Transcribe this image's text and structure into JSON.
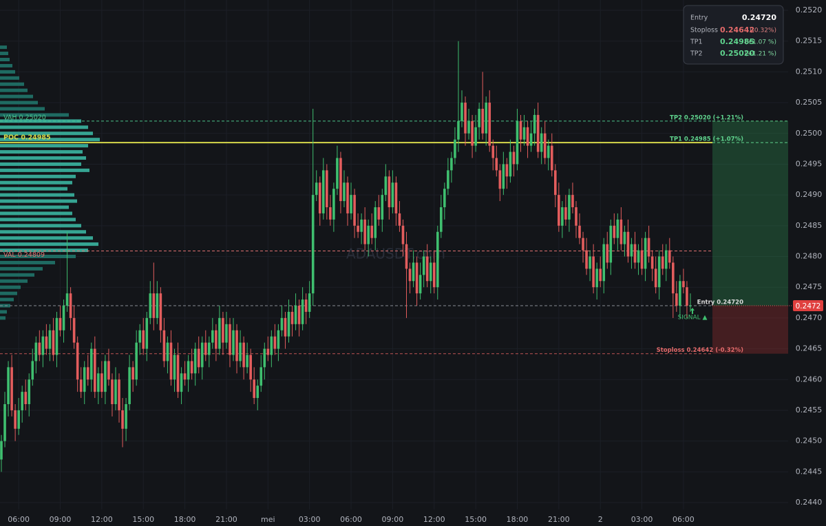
{
  "chart_data": {
    "type": "candlestick",
    "watermark": "ADAUSDT.com",
    "up_color": "#3fbf6f",
    "down_color": "#e35d5d",
    "grid": true,
    "ylim": [
      0.244,
      0.252
    ],
    "yticks": [
      {
        "value": 0.252,
        "label": "0.2520"
      },
      {
        "value": 0.2515,
        "label": "0.2515"
      },
      {
        "value": 0.251,
        "label": "0.2510"
      },
      {
        "value": 0.2505,
        "label": "0.2505"
      },
      {
        "value": 0.25,
        "label": "0.2500"
      },
      {
        "value": 0.2495,
        "label": "0.2495"
      },
      {
        "value": 0.249,
        "label": "0.2490"
      },
      {
        "value": 0.2485,
        "label": "0.2485"
      },
      {
        "value": 0.248,
        "label": "0.2480"
      },
      {
        "value": 0.2475,
        "label": "0.2475"
      },
      {
        "value": 0.247,
        "label": "0.2470"
      },
      {
        "value": 0.2465,
        "label": "0.2465"
      },
      {
        "value": 0.246,
        "label": "0.2460"
      },
      {
        "value": 0.2455,
        "label": "0.2455"
      },
      {
        "value": 0.245,
        "label": "0.2450"
      },
      {
        "value": 0.2445,
        "label": "0.2445"
      },
      {
        "value": 0.244,
        "label": "0.2440"
      }
    ],
    "categories": [
      null,
      null,
      null,
      null,
      null,
      "06:00",
      null,
      null,
      null,
      null,
      null,
      null,
      null,
      null,
      null,
      null,
      null,
      "09:00",
      null,
      null,
      null,
      null,
      null,
      null,
      null,
      null,
      null,
      null,
      null,
      "12:00",
      null,
      null,
      null,
      null,
      null,
      null,
      null,
      null,
      null,
      null,
      null,
      "15:00",
      null,
      null,
      null,
      null,
      null,
      null,
      null,
      null,
      null,
      null,
      null,
      "18:00",
      null,
      null,
      null,
      null,
      null,
      null,
      null,
      null,
      null,
      null,
      null,
      "21:00",
      null,
      null,
      null,
      null,
      null,
      null,
      null,
      null,
      null,
      null,
      null,
      "mei",
      null,
      null,
      null,
      null,
      null,
      null,
      null,
      null,
      null,
      null,
      null,
      "03:00",
      null,
      null,
      null,
      null,
      null,
      null,
      null,
      null,
      null,
      null,
      null,
      "06:00",
      null,
      null,
      null,
      null,
      null,
      null,
      null,
      null,
      null,
      null,
      null,
      "09:00",
      null,
      null,
      null,
      null,
      null,
      null,
      null,
      null,
      null,
      null,
      null,
      "12:00",
      null,
      null,
      null,
      null,
      null,
      null,
      null,
      null,
      null,
      null,
      null,
      "15:00",
      null,
      null,
      null,
      null,
      null,
      null,
      null,
      null,
      null,
      null,
      null,
      "18:00",
      null,
      null,
      null,
      null,
      null,
      null,
      null,
      null,
      null,
      null,
      null,
      "21:00",
      null,
      null,
      null,
      null,
      null,
      null,
      null,
      null,
      null,
      null,
      null,
      "2",
      null,
      null,
      null,
      null,
      null,
      null,
      null,
      null,
      null,
      null,
      null,
      "03:00",
      null,
      null,
      null,
      null,
      null,
      null,
      null,
      null,
      null,
      null,
      null,
      "06:00",
      null,
      null
    ],
    "open": [
      0.2447,
      0.245,
      0.2456,
      0.2462,
      0.2455,
      0.2452,
      0.2455,
      0.2458,
      0.2456,
      0.246,
      0.2463,
      0.2466,
      0.2464,
      0.2467,
      0.2465,
      0.2468,
      0.2464,
      0.247,
      0.2468,
      0.2472,
      0.2474,
      0.247,
      0.2466,
      0.246,
      0.2458,
      0.2462,
      0.246,
      0.2465,
      0.2458,
      0.2461,
      0.2458,
      0.2463,
      0.246,
      0.2456,
      0.246,
      0.2455,
      0.2452,
      0.2456,
      0.2462,
      0.246,
      0.2466,
      0.2468,
      0.2465,
      0.247,
      0.2474,
      0.247,
      0.2474,
      0.2468,
      0.2463,
      0.2466,
      0.246,
      0.2464,
      0.2458,
      0.2461,
      0.246,
      0.2463,
      0.2461,
      0.2465,
      0.2462,
      0.2466,
      0.2464,
      0.2466,
      0.2468,
      0.2465,
      0.247,
      0.2466,
      0.2469,
      0.2464,
      0.2468,
      0.2463,
      0.2466,
      0.2462,
      0.2464,
      0.246,
      0.2457,
      0.2459,
      0.2462,
      0.2465,
      0.2464,
      0.2467,
      0.2465,
      0.2468,
      0.247,
      0.2467,
      0.2471,
      0.2469,
      0.2472,
      0.2469,
      0.2473,
      0.2471,
      0.2474,
      0.249,
      0.2492,
      0.2487,
      0.2494,
      0.2488,
      0.2486,
      0.2491,
      0.2496,
      0.2489,
      0.2492,
      0.2487,
      0.249,
      0.2485,
      0.2484,
      0.2486,
      0.2482,
      0.2485,
      0.2483,
      0.2488,
      0.2486,
      0.249,
      0.2493,
      0.2488,
      0.2492,
      0.2487,
      0.2485,
      0.2482,
      0.2478,
      0.2476,
      0.2479,
      0.2474,
      0.2477,
      0.248,
      0.2476,
      0.2479,
      0.2475,
      0.2484,
      0.2488,
      0.2491,
      0.2494,
      0.2496,
      0.2499,
      0.2502,
      0.2505,
      0.25,
      0.2502,
      0.2498,
      0.2501,
      0.2504,
      0.25,
      0.2505,
      0.2498,
      0.2496,
      0.2494,
      0.2491,
      0.2495,
      0.2493,
      0.2497,
      0.2495,
      0.2502,
      0.2499,
      0.2501,
      0.2498,
      0.25,
      0.2503,
      0.2497,
      0.25,
      0.2496,
      0.2498,
      0.2494,
      0.249,
      0.2485,
      0.2488,
      0.2486,
      0.249,
      0.2488,
      0.2485,
      0.2483,
      0.2481,
      0.2478,
      0.248,
      0.2475,
      0.2478,
      0.2476,
      0.2482,
      0.2479,
      0.2485,
      0.2483,
      0.2486,
      0.2482,
      0.2484,
      0.248,
      0.2482,
      0.2479,
      0.2481,
      0.2478,
      0.2483,
      0.248,
      0.2478,
      0.2475,
      0.248,
      0.2478,
      0.2481,
      0.2479,
      0.2474,
      0.2472,
      0.2476,
      0.2475,
      0.2472
    ],
    "high": [
      0.2451,
      0.2458,
      0.2463,
      0.2464,
      0.2456,
      0.2457,
      0.2459,
      0.246,
      0.2461,
      0.2465,
      0.2467,
      0.2468,
      0.2468,
      0.2469,
      0.2469,
      0.247,
      0.2471,
      0.2472,
      0.2473,
      0.2484,
      0.2475,
      0.2472,
      0.2467,
      0.2462,
      0.2463,
      0.2464,
      0.2466,
      0.2467,
      0.2462,
      0.2463,
      0.2464,
      0.2465,
      0.2461,
      0.2462,
      0.2461,
      0.2457,
      0.2457,
      0.2464,
      0.2463,
      0.2468,
      0.2469,
      0.247,
      0.2471,
      0.2476,
      0.2479,
      0.2476,
      0.2475,
      0.247,
      0.2467,
      0.2468,
      0.2465,
      0.2466,
      0.2462,
      0.2463,
      0.2464,
      0.2465,
      0.2466,
      0.2467,
      0.2467,
      0.2468,
      0.2467,
      0.247,
      0.2469,
      0.2472,
      0.2471,
      0.2471,
      0.247,
      0.247,
      0.2469,
      0.2468,
      0.2467,
      0.2466,
      0.2465,
      0.2462,
      0.246,
      0.2464,
      0.2466,
      0.2467,
      0.2468,
      0.2469,
      0.2469,
      0.2472,
      0.2471,
      0.2473,
      0.2472,
      0.2474,
      0.2473,
      0.2475,
      0.2474,
      0.2476,
      0.2504,
      0.2494,
      0.2493,
      0.2496,
      0.2495,
      0.249,
      0.2492,
      0.2498,
      0.2497,
      0.2494,
      0.2493,
      0.2492,
      0.2491,
      0.2487,
      0.2487,
      0.2488,
      0.2486,
      0.2487,
      0.2489,
      0.249,
      0.2491,
      0.2495,
      0.2494,
      0.2494,
      0.2493,
      0.2489,
      0.2486,
      0.2484,
      0.2479,
      0.2481,
      0.248,
      0.2479,
      0.2481,
      0.2482,
      0.248,
      0.2481,
      0.2485,
      0.249,
      0.2492,
      0.2496,
      0.2497,
      0.2501,
      0.2515,
      0.2507,
      0.2506,
      0.2504,
      0.2503,
      0.2503,
      0.2505,
      0.251,
      0.2506,
      0.2507,
      0.2499,
      0.2498,
      0.2495,
      0.2497,
      0.2496,
      0.2499,
      0.2498,
      0.2504,
      0.2503,
      0.2503,
      0.2502,
      0.2502,
      0.2504,
      0.2505,
      0.2501,
      0.2502,
      0.2499,
      0.25,
      0.2495,
      0.2492,
      0.2489,
      0.249,
      0.2491,
      0.2492,
      0.2489,
      0.2487,
      0.2484,
      0.2483,
      0.2481,
      0.2482,
      0.2479,
      0.248,
      0.2483,
      0.2484,
      0.2486,
      0.2487,
      0.2487,
      0.2488,
      0.2485,
      0.2486,
      0.2483,
      0.2484,
      0.2482,
      0.2483,
      0.2484,
      0.2485,
      0.2481,
      0.248,
      0.2481,
      0.2482,
      0.2482,
      0.2483,
      0.248,
      0.2476,
      0.2477,
      0.2478,
      0.2476,
      0.2474
    ],
    "low": [
      0.2445,
      0.2449,
      0.2454,
      0.2454,
      0.245,
      0.2451,
      0.2453,
      0.2455,
      0.2454,
      0.2459,
      0.2461,
      0.2463,
      0.2462,
      0.2464,
      0.2463,
      0.2463,
      0.2462,
      0.2467,
      0.2466,
      0.2471,
      0.2468,
      0.2465,
      0.2458,
      0.2457,
      0.2456,
      0.2459,
      0.2458,
      0.2457,
      0.2456,
      0.2457,
      0.2456,
      0.2459,
      0.2454,
      0.2455,
      0.2453,
      0.2449,
      0.245,
      0.2455,
      0.2458,
      0.2459,
      0.2464,
      0.2464,
      0.2463,
      0.2469,
      0.2468,
      0.2469,
      0.2466,
      0.2462,
      0.2461,
      0.2459,
      0.2458,
      0.2457,
      0.2456,
      0.2459,
      0.2458,
      0.246,
      0.2459,
      0.2461,
      0.246,
      0.2463,
      0.2462,
      0.2465,
      0.2463,
      0.2464,
      0.2464,
      0.2465,
      0.2462,
      0.2463,
      0.2461,
      0.2462,
      0.246,
      0.2461,
      0.2458,
      0.2456,
      0.2455,
      0.2458,
      0.246,
      0.2463,
      0.2462,
      0.2464,
      0.2463,
      0.2467,
      0.2465,
      0.2466,
      0.2467,
      0.2468,
      0.2467,
      0.2468,
      0.2469,
      0.247,
      0.2472,
      0.2489,
      0.2485,
      0.2486,
      0.2486,
      0.2485,
      0.2484,
      0.249,
      0.2487,
      0.2488,
      0.2485,
      0.2486,
      0.2483,
      0.2483,
      0.2482,
      0.2481,
      0.248,
      0.2482,
      0.2481,
      0.2485,
      0.2484,
      0.2489,
      0.2486,
      0.2487,
      0.2485,
      0.2484,
      0.248,
      0.247,
      0.2474,
      0.2475,
      0.2472,
      0.2473,
      0.2475,
      0.2475,
      0.2474,
      0.2474,
      0.2473,
      0.2483,
      0.2486,
      0.249,
      0.2492,
      0.2495,
      0.2497,
      0.2501,
      0.2498,
      0.2499,
      0.2496,
      0.2497,
      0.2499,
      0.2499,
      0.2498,
      0.2497,
      0.2494,
      0.2493,
      0.2489,
      0.249,
      0.2491,
      0.2492,
      0.2493,
      0.2494,
      0.2497,
      0.2498,
      0.2496,
      0.2497,
      0.2498,
      0.2496,
      0.2495,
      0.2495,
      0.2494,
      0.2493,
      0.2488,
      0.2484,
      0.2483,
      0.2485,
      0.2484,
      0.2487,
      0.2483,
      0.2482,
      0.2479,
      0.2477,
      0.2476,
      0.2474,
      0.2473,
      0.2475,
      0.2474,
      0.2478,
      0.2477,
      0.2482,
      0.2481,
      0.2481,
      0.248,
      0.2479,
      0.2478,
      0.2478,
      0.2477,
      0.2477,
      0.2476,
      0.2479,
      0.2476,
      0.2474,
      0.2473,
      0.2477,
      0.2476,
      0.2478,
      0.247,
      0.2471,
      0.247,
      0.2474,
      0.247,
      0.2471
    ],
    "close": [
      0.245,
      0.2456,
      0.2462,
      0.2455,
      0.2452,
      0.2455,
      0.2458,
      0.2456,
      0.246,
      0.2463,
      0.2466,
      0.2464,
      0.2467,
      0.2465,
      0.2468,
      0.2464,
      0.247,
      0.2468,
      0.2472,
      0.2474,
      0.247,
      0.2466,
      0.246,
      0.2458,
      0.2462,
      0.246,
      0.2465,
      0.2458,
      0.2461,
      0.2458,
      0.2463,
      0.246,
      0.2456,
      0.246,
      0.2455,
      0.2452,
      0.2456,
      0.2462,
      0.246,
      0.2466,
      0.2468,
      0.2465,
      0.247,
      0.2474,
      0.247,
      0.2474,
      0.2468,
      0.2463,
      0.2466,
      0.246,
      0.2464,
      0.2458,
      0.2461,
      0.246,
      0.2463,
      0.2461,
      0.2465,
      0.2462,
      0.2466,
      0.2464,
      0.2466,
      0.2468,
      0.2465,
      0.247,
      0.2466,
      0.2469,
      0.2464,
      0.2468,
      0.2463,
      0.2466,
      0.2462,
      0.2464,
      0.246,
      0.2457,
      0.2459,
      0.2462,
      0.2465,
      0.2464,
      0.2467,
      0.2465,
      0.2468,
      0.247,
      0.2467,
      0.2471,
      0.2469,
      0.2472,
      0.2469,
      0.2473,
      0.2471,
      0.2474,
      0.249,
      0.2492,
      0.2487,
      0.2494,
      0.2488,
      0.2486,
      0.2491,
      0.2496,
      0.2489,
      0.2492,
      0.2487,
      0.249,
      0.2485,
      0.2484,
      0.2486,
      0.2482,
      0.2485,
      0.2483,
      0.2488,
      0.2486,
      0.249,
      0.2493,
      0.2488,
      0.2492,
      0.2487,
      0.2485,
      0.2482,
      0.2478,
      0.2476,
      0.2479,
      0.2474,
      0.2477,
      0.248,
      0.2476,
      0.2479,
      0.2475,
      0.2484,
      0.2488,
      0.2491,
      0.2494,
      0.2496,
      0.2499,
      0.2502,
      0.2505,
      0.25,
      0.2502,
      0.2498,
      0.2501,
      0.2504,
      0.25,
      0.2505,
      0.2498,
      0.2496,
      0.2494,
      0.2491,
      0.2495,
      0.2493,
      0.2497,
      0.2495,
      0.2502,
      0.2499,
      0.2501,
      0.2498,
      0.25,
      0.2503,
      0.2497,
      0.25,
      0.2496,
      0.2498,
      0.2494,
      0.249,
      0.2485,
      0.2488,
      0.2486,
      0.249,
      0.2488,
      0.2485,
      0.2483,
      0.2481,
      0.2478,
      0.248,
      0.2475,
      0.2478,
      0.2476,
      0.2482,
      0.2479,
      0.2485,
      0.2483,
      0.2486,
      0.2482,
      0.2484,
      0.248,
      0.2482,
      0.2479,
      0.2481,
      0.2478,
      0.2483,
      0.248,
      0.2478,
      0.2475,
      0.248,
      0.2478,
      0.2481,
      0.2479,
      0.2474,
      0.2472,
      0.2476,
      0.2475,
      0.2472,
      0.2472
    ],
    "volume_profile": {
      "color": "#1f6b62",
      "value_area_color": "#36a593",
      "prices": [
        0.2514,
        0.2513,
        0.2512,
        0.2511,
        0.251,
        0.2509,
        0.2508,
        0.2507,
        0.2506,
        0.2505,
        0.2504,
        0.2503,
        0.2502,
        0.2501,
        0.25,
        0.2499,
        0.2498,
        0.2497,
        0.2496,
        0.2495,
        0.2494,
        0.2493,
        0.2492,
        0.2491,
        0.249,
        0.2489,
        0.2488,
        0.2487,
        0.2486,
        0.2485,
        0.2484,
        0.2483,
        0.2482,
        0.2481,
        0.248,
        0.2479,
        0.2478,
        0.2477,
        0.2476,
        0.2475,
        0.2474,
        0.2473,
        0.2472,
        0.2471,
        0.247
      ],
      "values": [
        10,
        12,
        14,
        18,
        22,
        28,
        35,
        40,
        48,
        55,
        65,
        100,
        118,
        128,
        135,
        145,
        128,
        120,
        125,
        118,
        130,
        110,
        105,
        98,
        108,
        112,
        100,
        105,
        110,
        118,
        125,
        135,
        143,
        128,
        110,
        80,
        62,
        50,
        40,
        30,
        25,
        20,
        15,
        10,
        8
      ]
    },
    "levels": [
      {
        "value": 0.2502,
        "label": "VAH 0.25020",
        "color": "#4cc38a",
        "dash": true
      },
      {
        "value": 0.24985,
        "label": "POC 0.24985",
        "color": "#d6d84a",
        "dash": false
      },
      {
        "value": 0.24809,
        "label": "VAL 0.24809",
        "color": "#e07070",
        "dash": true
      }
    ],
    "trade": {
      "tp2": {
        "value": 0.2502,
        "label": "TP2 0.25020 (+1.21%)",
        "color": "#5fd38d"
      },
      "tp1": {
        "value": 0.24985,
        "label": "TP1 0.24985 (+1.07%)",
        "color": "#5fd38d"
      },
      "entry": {
        "value": 0.2472,
        "label": "Entry 0.24720",
        "color": "#d8d8d8"
      },
      "stoploss": {
        "value": 0.24642,
        "label": "Stoploss 0.24642 (-0.32%)",
        "color": "#e36a6a"
      },
      "signal": "SIGNAL ▲",
      "price_tag": "0.2472"
    },
    "info_box": {
      "rows": [
        [
          "Entry",
          "0.24720"
        ],
        [
          "Stoploss",
          "0.24642",
          "(-0.32%)"
        ],
        [
          "TP1",
          "0.24985",
          "(+1.07 %)"
        ],
        [
          "TP2",
          "0.25020",
          "(+1.21 %)"
        ]
      ]
    }
  }
}
